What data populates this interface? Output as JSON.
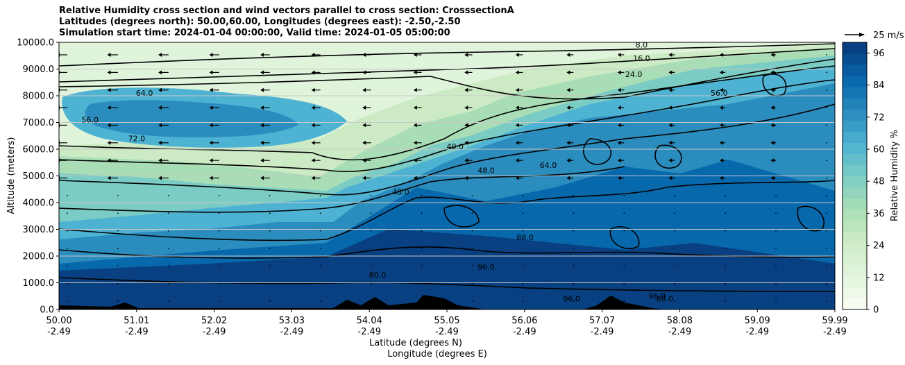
{
  "titles": [
    "Relative Humidity cross section and wind vectors parallel to cross section: CrosssectionA",
    "Latitudes (degrees north): 50.00,60.00, Longitudes (degrees east): -2.50,-2.50",
    "Simulation start time: 2024-01-04 00:00:00, Valid time: 2024-01-05 05:00:00"
  ],
  "chart_data": {
    "type": "heatmap",
    "xlabel_lat": "Latitude (degrees N)",
    "xlabel_lon": "Longitude (degrees E)",
    "ylabel": "Altitude (meters)",
    "ylim": [
      0,
      10000
    ],
    "yticks": [
      "0.0",
      "1000.0",
      "2000.0",
      "3000.0",
      "4000.0",
      "5000.0",
      "6000.0",
      "7000.0",
      "8000.0",
      "9000.0",
      "10000.0"
    ],
    "xticks": [
      {
        "lat": "50.00",
        "lon": "-2.49"
      },
      {
        "lat": "51.01",
        "lon": "-2.49"
      },
      {
        "lat": "52.02",
        "lon": "-2.49"
      },
      {
        "lat": "53.03",
        "lon": "-2.49"
      },
      {
        "lat": "54.04",
        "lon": "-2.49"
      },
      {
        "lat": "55.05",
        "lon": "-2.49"
      },
      {
        "lat": "56.06",
        "lon": "-2.49"
      },
      {
        "lat": "57.07",
        "lon": "-2.49"
      },
      {
        "lat": "58.08",
        "lon": "-2.49"
      },
      {
        "lat": "59.09",
        "lon": "-2.49"
      },
      {
        "lat": "59.99",
        "lon": "-2.49"
      }
    ],
    "colorbar": {
      "label": "Relative Humidity %",
      "ticks": [
        "0",
        "12",
        "24",
        "36",
        "48",
        "60",
        "72",
        "84",
        "96"
      ],
      "range": [
        0,
        100
      ],
      "colors": [
        "#f7fcf0",
        "#e0f3db",
        "#ccebc5",
        "#a8ddb5",
        "#7bccc4",
        "#4eb3d3",
        "#2b8cbe",
        "#0868ac",
        "#084081"
      ]
    },
    "wind_key": "25 m/s",
    "contour_labels": [
      {
        "text": "8.0",
        "lat": 57.5,
        "alt": 9800
      },
      {
        "text": "16.0",
        "lat": 57.5,
        "alt": 9300
      },
      {
        "text": "24.0",
        "lat": 57.4,
        "alt": 8700
      },
      {
        "text": "40.0",
        "lat": 55.1,
        "alt": 6000
      },
      {
        "text": "48.0",
        "lat": 54.4,
        "alt": 4300
      },
      {
        "text": "48.0",
        "lat": 55.5,
        "alt": 5100
      },
      {
        "text": "56.0",
        "lat": 50.4,
        "alt": 7000
      },
      {
        "text": "56.0",
        "lat": 58.5,
        "alt": 8000
      },
      {
        "text": "64.0",
        "lat": 51.1,
        "alt": 8000
      },
      {
        "text": "64.0",
        "lat": 56.3,
        "alt": 5300
      },
      {
        "text": "72.0",
        "lat": 51.0,
        "alt": 6300
      },
      {
        "text": "80.0",
        "lat": 54.1,
        "alt": 1200
      },
      {
        "text": "88.0",
        "lat": 56.0,
        "alt": 2600
      },
      {
        "text": "96.0",
        "lat": 55.5,
        "alt": 1500
      },
      {
        "text": "96.0",
        "lat": 56.6,
        "alt": 300
      },
      {
        "text": "96.0",
        "lat": 57.7,
        "alt": 400
      },
      {
        "text": "88.0",
        "lat": 57.8,
        "alt": 300
      }
    ],
    "description": "Relative humidity: dry (0-40%) band sloping from ~6000-9000 m at 50N to ~9500 m at 60N; moist (80-100%) below ~5000 m north of 54N; winds mostly from the east (arrows pointing west) in upper levels"
  }
}
